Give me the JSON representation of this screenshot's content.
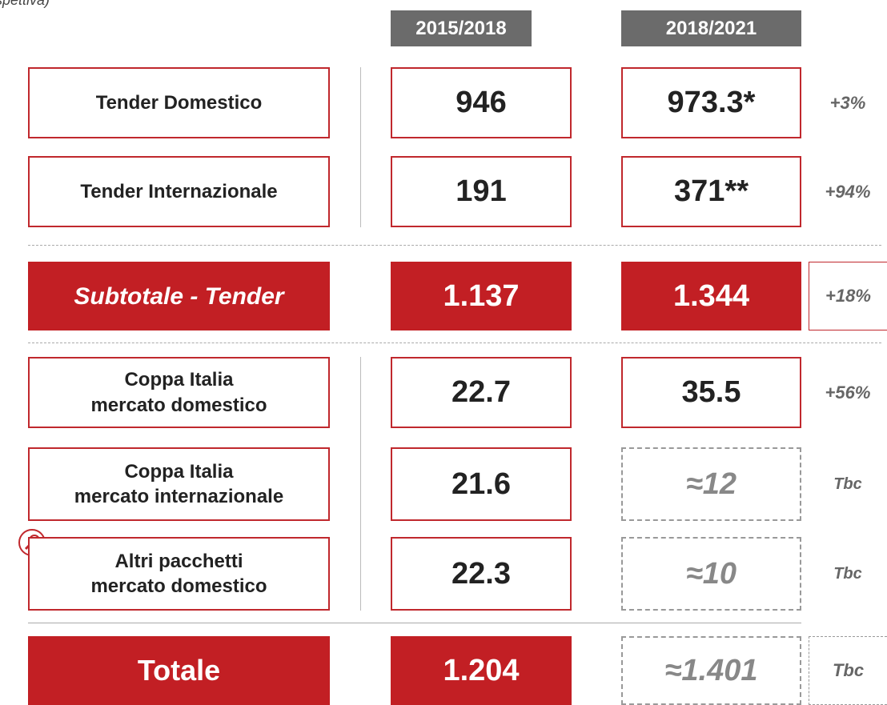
{
  "header": {
    "note": "spettiva)",
    "columns": [
      "2015/2018",
      "2018/2021"
    ]
  },
  "table": {
    "rows": [
      {
        "label": "Tender Domestico",
        "values": [
          "946",
          "973.3*"
        ],
        "change": "+3%"
      },
      {
        "label": "Tender Internazionale",
        "values": [
          "191",
          "371**"
        ],
        "change": "+94%"
      },
      {
        "label": "Subtotale - Tender",
        "values": [
          "1.137",
          "1.344"
        ],
        "change": "+18%"
      },
      {
        "label": "Coppa Italia\nmercato domestico",
        "values": [
          "22.7",
          "35.5"
        ],
        "change": "+56%"
      },
      {
        "label": "Coppa Italia\nmercato internazionale",
        "values": [
          "21.6",
          "≈12"
        ],
        "change": "Tbc"
      },
      {
        "label": "Altri pacchetti\nmercato domestico",
        "values": [
          "22.3",
          "≈10"
        ],
        "change": "Tbc"
      },
      {
        "label": "Totale",
        "values": [
          "1.204",
          "≈1.401"
        ],
        "change": "Tbc"
      }
    ]
  }
}
